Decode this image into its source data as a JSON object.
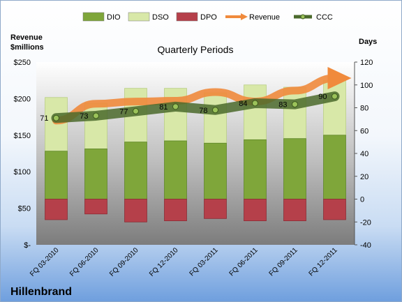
{
  "company": "Hillenbrand",
  "chart_data": {
    "type": "bar",
    "title": "Quarterly Periods",
    "left_axis_title": [
      "Revenue",
      "$millions"
    ],
    "right_axis_title": "Days",
    "categories": [
      "FQ 03-2010",
      "FQ 06-2010",
      "FQ 09-2010",
      "FQ 12-2010",
      "FQ 03-2011",
      "FQ 06-2011",
      "FQ 09-2011",
      "FQ 12-2011"
    ],
    "left_ticks": [
      "$-",
      "$50",
      "$100",
      "$150",
      "$200",
      "$250"
    ],
    "right_ticks": [
      "-40",
      "-20",
      "0",
      "20",
      "40",
      "60",
      "80",
      "100",
      "120"
    ],
    "left_ylim": [
      0,
      250
    ],
    "right_ylim": [
      -40,
      120
    ],
    "legend": [
      "DIO",
      "DSO",
      "DPO",
      "Revenue",
      "CCC"
    ],
    "series": [
      {
        "name": "DIO",
        "axis": "days",
        "color": "#7fa63a",
        "values": [
          42,
          44,
          50,
          51,
          49,
          52,
          53,
          56
        ]
      },
      {
        "name": "DSO",
        "axis": "days",
        "color": "#d8e8a8",
        "values": [
          47,
          40,
          47,
          46,
          44,
          48,
          45,
          48
        ]
      },
      {
        "name": "DPO",
        "axis": "days",
        "color": "#b5404a",
        "values": [
          -18,
          -13,
          -20,
          -19,
          -17,
          -19,
          -19,
          -18
        ]
      },
      {
        "name": "Revenue",
        "axis": "revenue",
        "color": "#f08a3c",
        "values": [
          170,
          193,
          196,
          197,
          209,
          196,
          211,
          228
        ]
      },
      {
        "name": "CCC",
        "axis": "days",
        "color": "#4b6a2c",
        "values": [
          71,
          73,
          77,
          81,
          78,
          84,
          83,
          90
        ]
      }
    ],
    "ccc_labels": [
      "71",
      "73",
      "77",
      "81",
      "78",
      "84",
      "83",
      "90"
    ]
  }
}
